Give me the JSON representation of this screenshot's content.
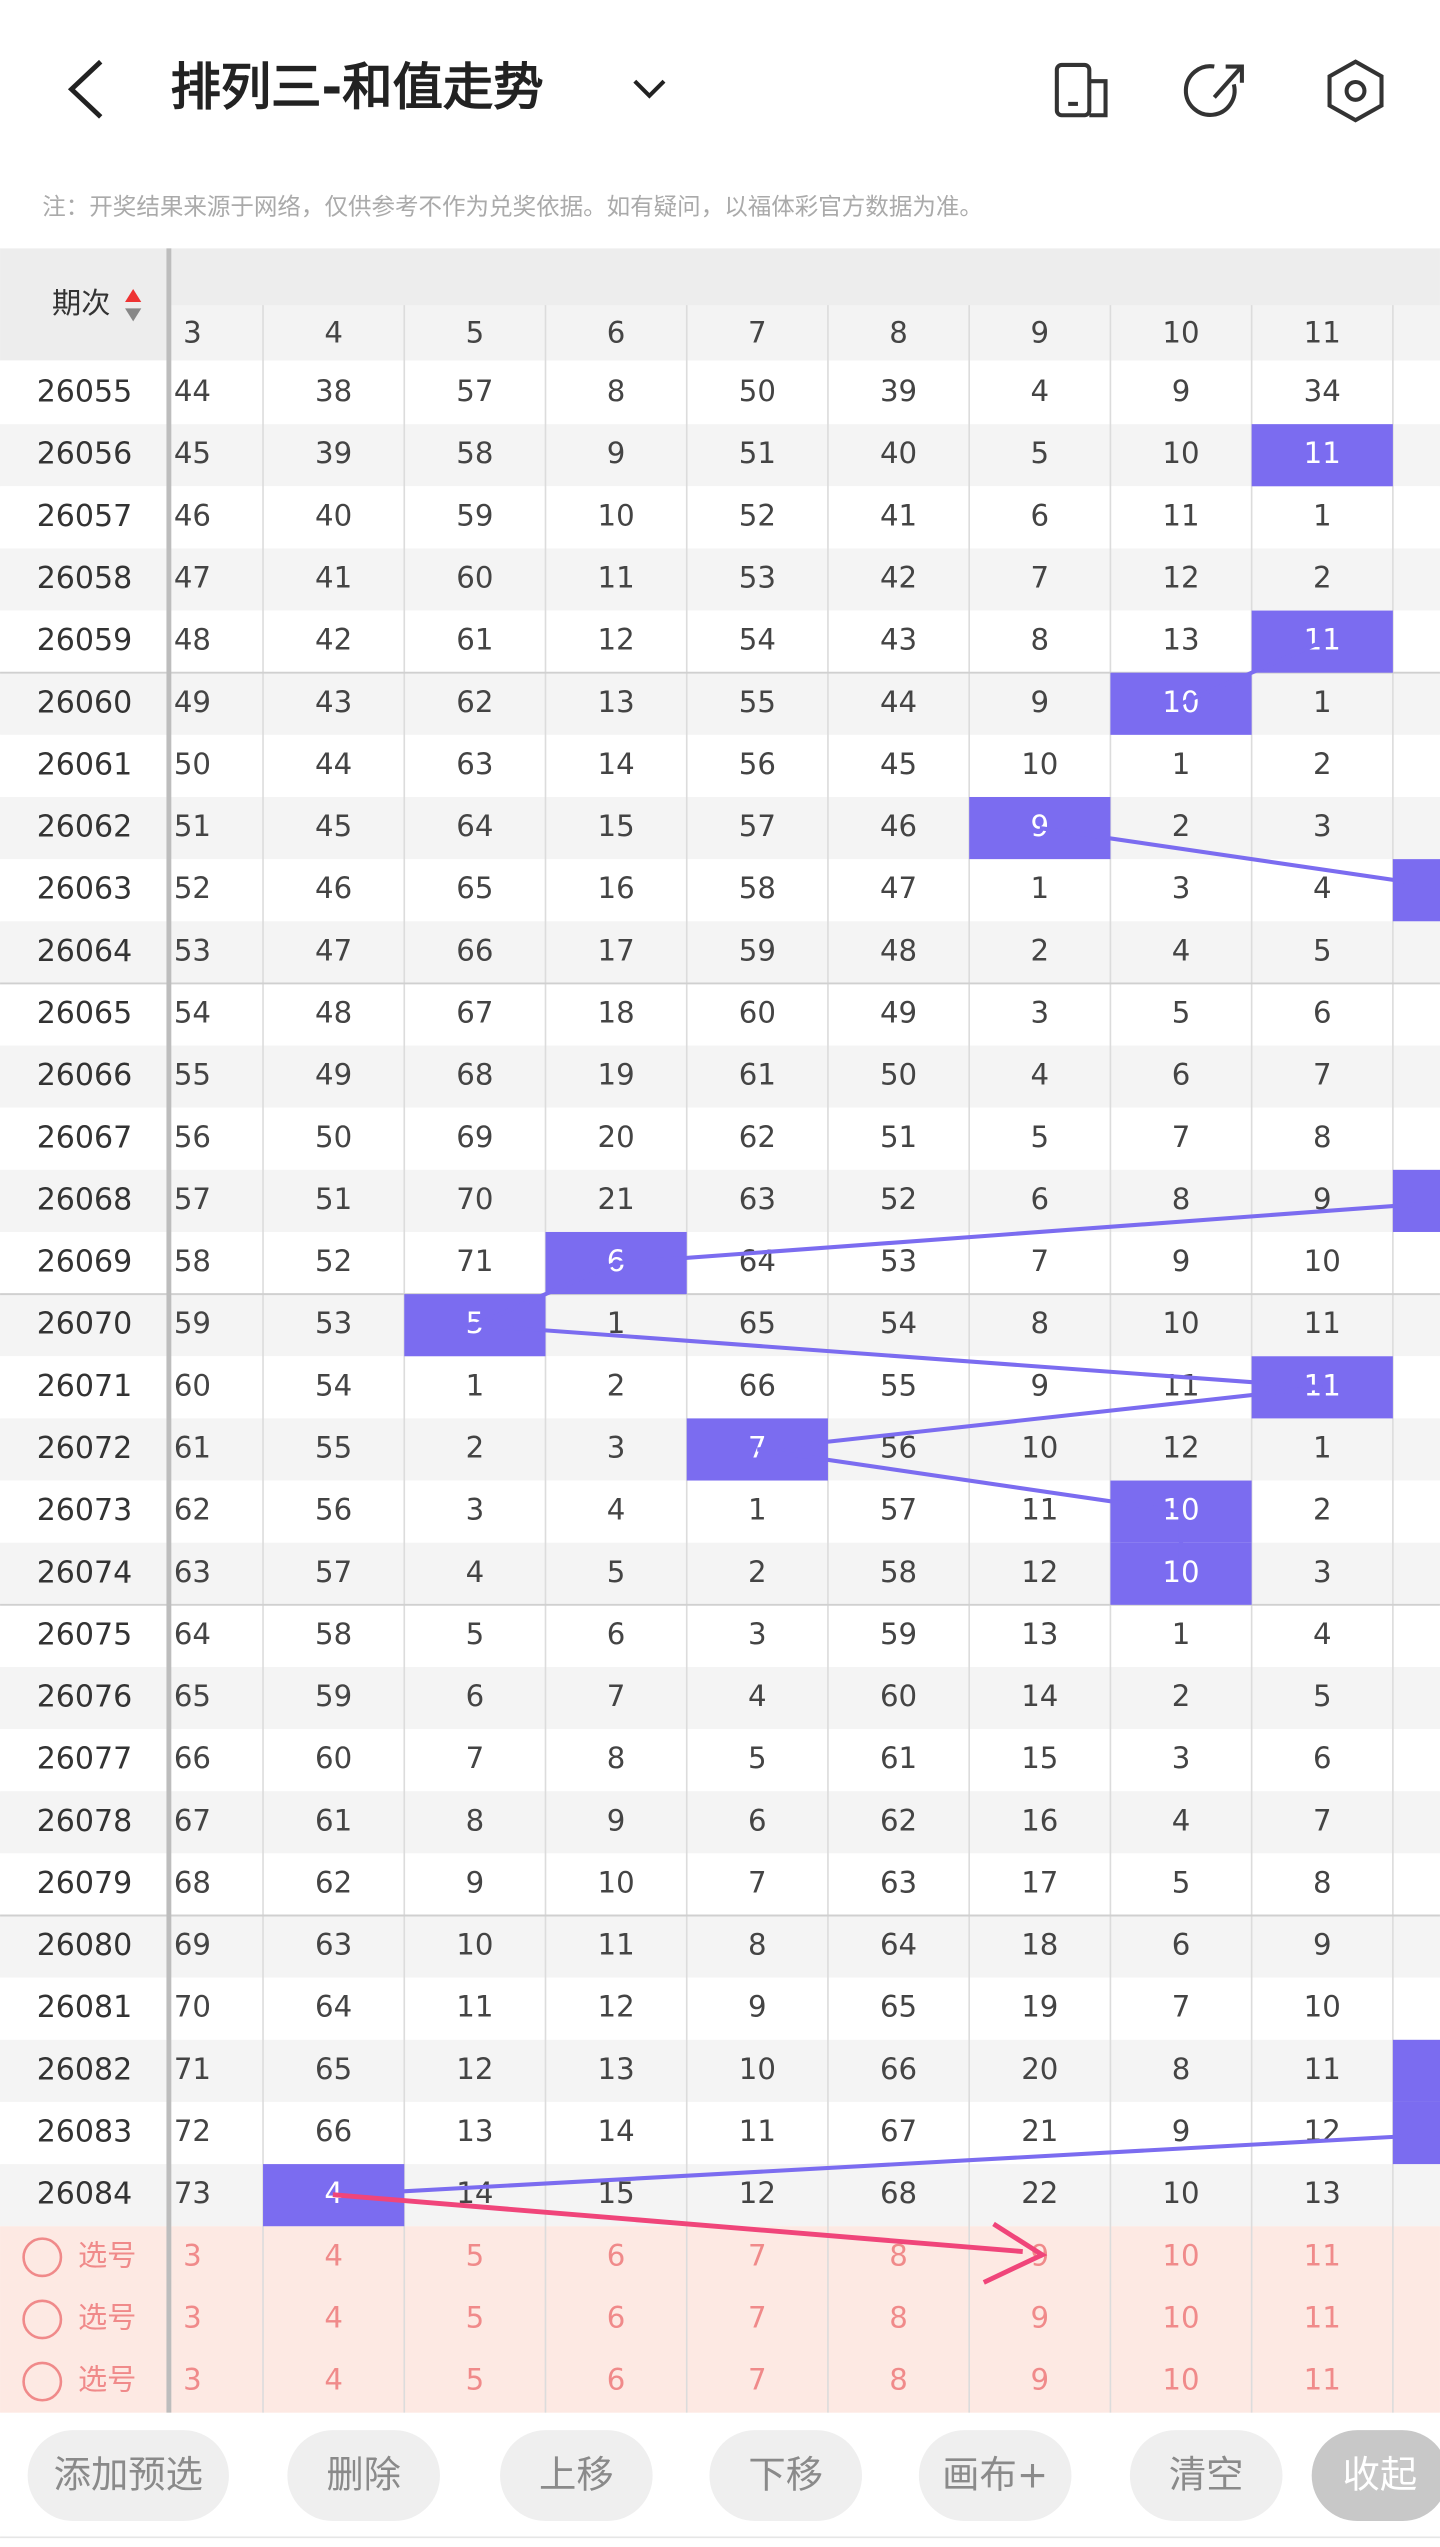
{
  "header": {
    "title": "排列三-和值走势"
  },
  "note": "注：开奖结果来源于网络，仅供参考不作为兑奖依据。如有疑问，以福体彩官方数据为准。",
  "table": {
    "period_header": "期次",
    "hit_color": "#7b6cf0",
    "columns": [
      3,
      4,
      5,
      6,
      7,
      8,
      9,
      10,
      11
    ],
    "rows": [
      {
        "period": "26055",
        "values": [
          44,
          38,
          57,
          8,
          50,
          39,
          4,
          9,
          34
        ],
        "hit": null
      },
      {
        "period": "26056",
        "values": [
          45,
          39,
          58,
          9,
          51,
          40,
          5,
          10,
          11
        ],
        "hit": 8
      },
      {
        "period": "26057",
        "values": [
          46,
          40,
          59,
          10,
          52,
          41,
          6,
          11,
          1
        ],
        "hit": null
      },
      {
        "period": "26058",
        "values": [
          47,
          41,
          60,
          11,
          53,
          42,
          7,
          12,
          2
        ],
        "hit": null
      },
      {
        "period": "26059",
        "values": [
          48,
          42,
          61,
          12,
          54,
          43,
          8,
          13,
          11
        ],
        "hit": 8
      },
      {
        "period": "26060",
        "values": [
          49,
          43,
          62,
          13,
          55,
          44,
          9,
          10,
          1
        ],
        "hit": 7
      },
      {
        "period": "26061",
        "values": [
          50,
          44,
          63,
          14,
          56,
          45,
          10,
          1,
          2
        ],
        "hit": null
      },
      {
        "period": "26062",
        "values": [
          51,
          45,
          64,
          15,
          57,
          46,
          9,
          2,
          3
        ],
        "hit": 6
      },
      {
        "period": "26063",
        "values": [
          52,
          46,
          65,
          16,
          58,
          47,
          1,
          3,
          4
        ],
        "hit": 9
      },
      {
        "period": "26064",
        "values": [
          53,
          47,
          66,
          17,
          59,
          48,
          2,
          4,
          5
        ],
        "hit": null
      },
      {
        "period": "26065",
        "values": [
          54,
          48,
          67,
          18,
          60,
          49,
          3,
          5,
          6
        ],
        "hit": null
      },
      {
        "period": "26066",
        "values": [
          55,
          49,
          68,
          19,
          61,
          50,
          4,
          6,
          7
        ],
        "hit": null
      },
      {
        "period": "26067",
        "values": [
          56,
          50,
          69,
          20,
          62,
          51,
          5,
          7,
          8
        ],
        "hit": null
      },
      {
        "period": "26068",
        "values": [
          57,
          51,
          70,
          21,
          63,
          52,
          6,
          8,
          9
        ],
        "hit": 9
      },
      {
        "period": "26069",
        "values": [
          58,
          52,
          71,
          6,
          64,
          53,
          7,
          9,
          10
        ],
        "hit": 3
      },
      {
        "period": "26070",
        "values": [
          59,
          53,
          5,
          1,
          65,
          54,
          8,
          10,
          11
        ],
        "hit": 2
      },
      {
        "period": "26071",
        "values": [
          60,
          54,
          1,
          2,
          66,
          55,
          9,
          11,
          11
        ],
        "hit": 8
      },
      {
        "period": "26072",
        "values": [
          61,
          55,
          2,
          3,
          7,
          56,
          10,
          12,
          1
        ],
        "hit": 4
      },
      {
        "period": "26073",
        "values": [
          62,
          56,
          3,
          4,
          1,
          57,
          11,
          10,
          2
        ],
        "hit": 7
      },
      {
        "period": "26074",
        "values": [
          63,
          57,
          4,
          5,
          2,
          58,
          12,
          10,
          3
        ],
        "hit": 7
      },
      {
        "period": "26075",
        "values": [
          64,
          58,
          5,
          6,
          3,
          59,
          13,
          1,
          4
        ],
        "hit": null
      },
      {
        "period": "26076",
        "values": [
          65,
          59,
          6,
          7,
          4,
          60,
          14,
          2,
          5
        ],
        "hit": null
      },
      {
        "period": "26077",
        "values": [
          66,
          60,
          7,
          8,
          5,
          61,
          15,
          3,
          6
        ],
        "hit": null
      },
      {
        "period": "26078",
        "values": [
          67,
          61,
          8,
          9,
          6,
          62,
          16,
          4,
          7
        ],
        "hit": null
      },
      {
        "period": "26079",
        "values": [
          68,
          62,
          9,
          10,
          7,
          63,
          17,
          5,
          8
        ],
        "hit": null
      },
      {
        "period": "26080",
        "values": [
          69,
          63,
          10,
          11,
          8,
          64,
          18,
          6,
          9
        ],
        "hit": null
      },
      {
        "period": "26081",
        "values": [
          70,
          64,
          11,
          12,
          9,
          65,
          19,
          7,
          10
        ],
        "hit": null
      },
      {
        "period": "26082",
        "values": [
          71,
          65,
          12,
          13,
          10,
          66,
          20,
          8,
          11
        ],
        "hit": 9
      },
      {
        "period": "26083",
        "values": [
          72,
          66,
          13,
          14,
          11,
          67,
          21,
          9,
          12
        ],
        "hit": 9
      },
      {
        "period": "26084",
        "values": [
          73,
          4,
          14,
          15,
          12,
          68,
          22,
          10,
          13
        ],
        "hit": 1
      }
    ]
  },
  "select_rows": [
    {
      "label": "选号",
      "values": [
        3,
        4,
        5,
        6,
        7,
        8,
        9,
        10,
        11
      ]
    },
    {
      "label": "选号",
      "values": [
        3,
        4,
        5,
        6,
        7,
        8,
        9,
        10,
        11
      ]
    },
    {
      "label": "选号",
      "values": [
        3,
        4,
        5,
        6,
        7,
        8,
        9,
        10,
        11
      ]
    }
  ],
  "buttons": [
    "添加预选",
    "删除",
    "上移",
    "下移",
    "画布+",
    "清空",
    "收起"
  ]
}
